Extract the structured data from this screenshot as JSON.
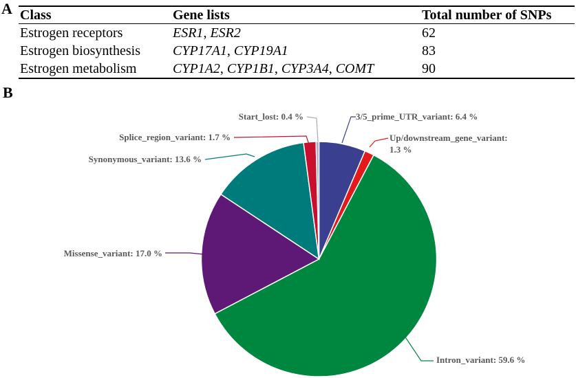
{
  "panel_a": {
    "label": "A",
    "headers": [
      "Class",
      "Gene lists",
      "Total number of SNPs"
    ],
    "rows": [
      {
        "class": "Estrogen receptors",
        "genes": [
          "ESR1",
          "ESR2"
        ],
        "total": "62"
      },
      {
        "class": "Estrogen biosynthesis",
        "genes": [
          "CYP17A1",
          "CYP19A1"
        ],
        "total": "83"
      },
      {
        "class": "Estrogen metabolism",
        "genes": [
          "CYP1A2",
          "CYP1B1",
          "CYP3A4",
          "COMT"
        ],
        "total": "90"
      }
    ]
  },
  "panel_b": {
    "label": "B"
  },
  "chart_data": {
    "type": "pie",
    "title": "",
    "slices": [
      {
        "name": "3/5_prime_UTR_variant",
        "value": 6.4,
        "label": "3/5_prime_UTR_variant: 6.4 %",
        "color": "#3b3f8f"
      },
      {
        "name": "Up/downstream_gene_variant",
        "value": 1.3,
        "label": "Up/downstream_gene_variant:",
        "label2": "1.3 %",
        "color": "#e31a1c"
      },
      {
        "name": "Intron_variant",
        "value": 59.6,
        "label": "Intron_variant: 59.6 %",
        "color": "#00873f"
      },
      {
        "name": "Missense_variant",
        "value": 17.0,
        "label": "Missense_variant: 17.0 %",
        "color": "#5e1875"
      },
      {
        "name": "Synonymous_variant",
        "value": 13.6,
        "label": "Synonymous_variant: 13.6 %",
        "color": "#007b7b"
      },
      {
        "name": "Splice_region_variant",
        "value": 1.7,
        "label": "Splice_region_variant: 1.7 %",
        "color": "#c8102e"
      },
      {
        "name": "Start_lost",
        "value": 0.4,
        "label": "Start_lost: 0.4 %",
        "color": "#a8a8c8"
      }
    ]
  }
}
